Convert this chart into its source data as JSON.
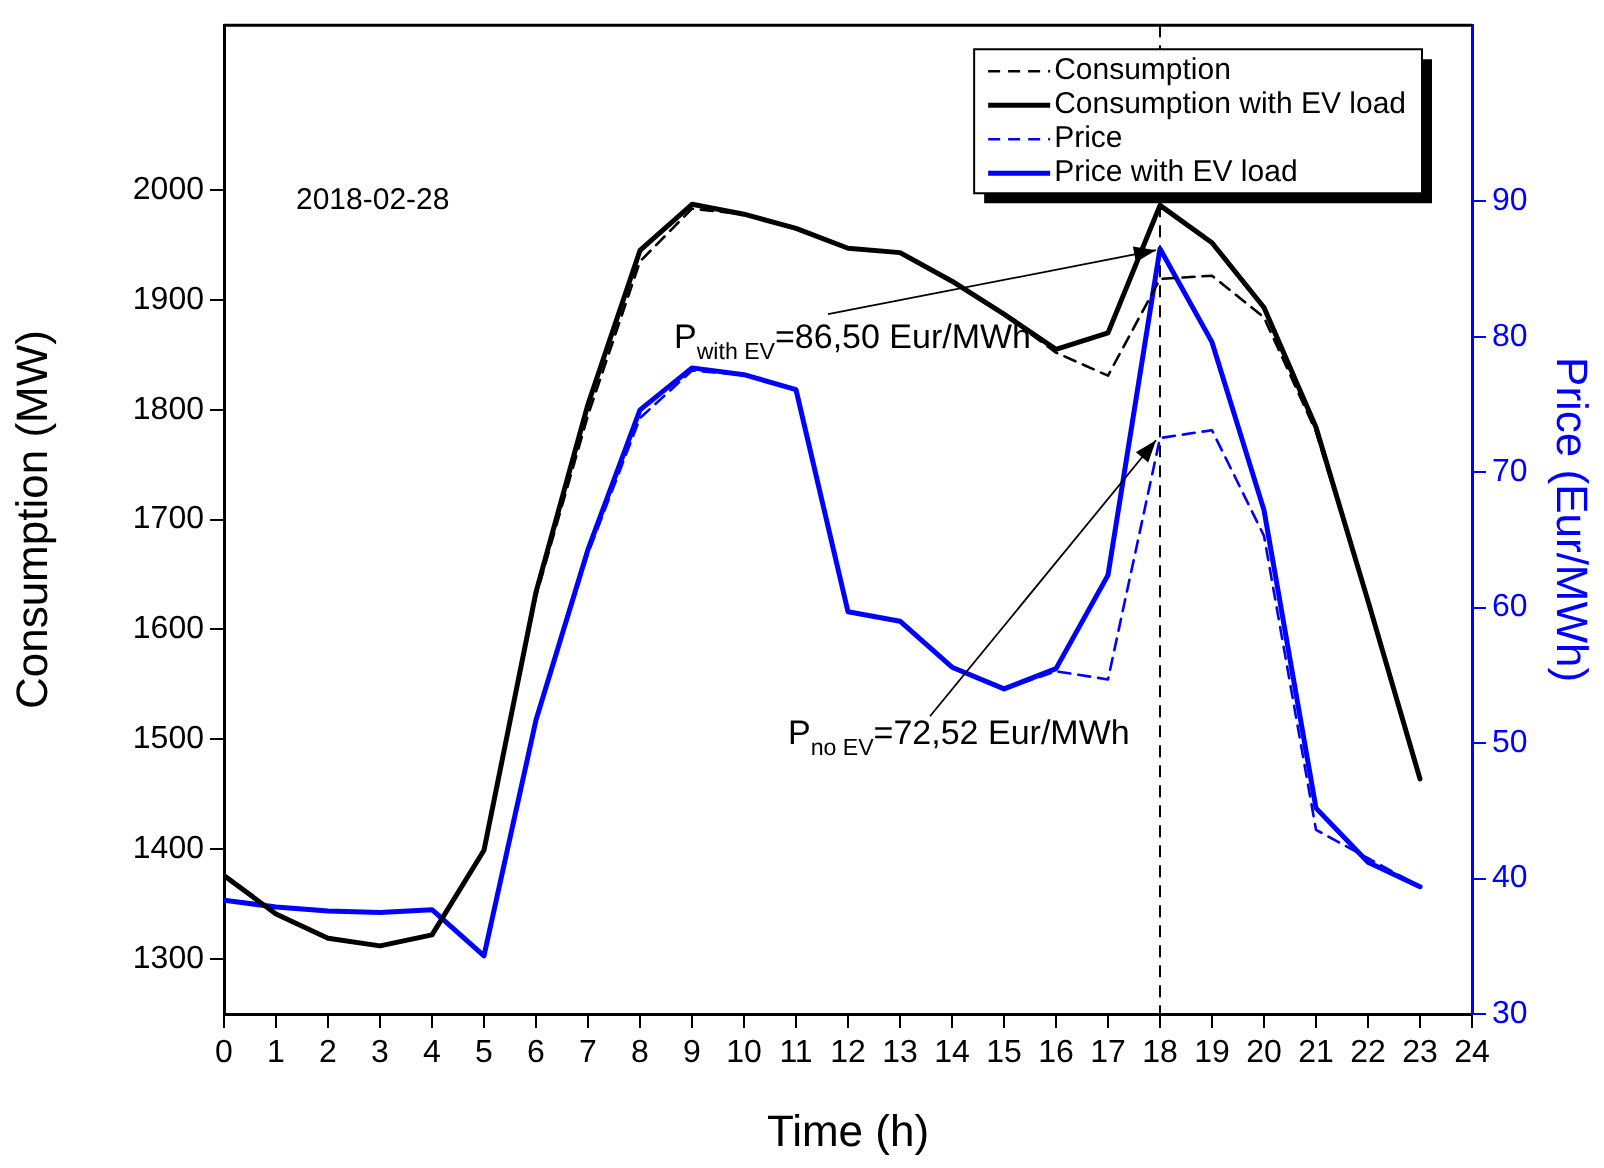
{
  "chart_data": {
    "type": "line",
    "xlabel": "Time (h)",
    "ylabel": "Consumption (MW)",
    "y2label": "Price (Eur/MWh)",
    "x": [
      0,
      1,
      2,
      3,
      4,
      5,
      6,
      7,
      8,
      9,
      10,
      11,
      12,
      13,
      14,
      15,
      16,
      17,
      18,
      19,
      20,
      21,
      22,
      23
    ],
    "series": [
      {
        "name": "Consumption",
        "color": "#000000",
        "line_style": "dashed",
        "values": [
          1376,
          1341,
          1319,
          1312,
          1322,
          1399,
          1630,
          1795,
          1935,
          1983,
          1978,
          1965,
          1947,
          1943,
          1917,
          1887,
          1852,
          1831,
          1919,
          1922,
          1884,
          1780,
          1626,
          1464
        ]
      },
      {
        "name": "Consumption with EV load",
        "color": "#000000",
        "line_style": "solid",
        "values": [
          1376,
          1341,
          1319,
          1312,
          1322,
          1399,
          1634,
          1805,
          1945,
          1987,
          1978,
          1965,
          1947,
          1943,
          1917,
          1887,
          1855,
          1870,
          1986,
          1952,
          1893,
          1784,
          1626,
          1464
        ]
      },
      {
        "name": "Price",
        "color": "#0000ff",
        "line_style": "dashed",
        "axis": "y2",
        "values": [
          38.4,
          37.9,
          37.6,
          37.5,
          37.7,
          34.3,
          51.7,
          64.0,
          74.0,
          77.5,
          77.2,
          76.1,
          59.7,
          59.0,
          55.6,
          54.0,
          55.3,
          54.7,
          72.52,
          73.1,
          65.3,
          43.6,
          41.5,
          39.4
        ]
      },
      {
        "name": "Price with EV load",
        "color": "#0000ff",
        "line_style": "solid",
        "axis": "y2",
        "values": [
          38.4,
          37.9,
          37.6,
          37.5,
          37.7,
          34.3,
          51.7,
          64.3,
          74.6,
          77.7,
          77.2,
          76.1,
          59.7,
          59.0,
          55.6,
          54.0,
          55.5,
          62.4,
          86.5,
          79.6,
          67.2,
          45.2,
          41.2,
          39.4
        ]
      }
    ],
    "xlim": [
      0,
      24
    ],
    "xticks": [
      0,
      1,
      2,
      3,
      4,
      5,
      6,
      7,
      8,
      9,
      10,
      11,
      12,
      13,
      14,
      15,
      16,
      17,
      18,
      19,
      20,
      21,
      22,
      23,
      24
    ],
    "ylim": [
      1250,
      2150
    ],
    "yticks": [
      1300,
      1400,
      1500,
      1600,
      1700,
      1800,
      1900,
      2000
    ],
    "y2lim": [
      30,
      103
    ],
    "y2ticks": [
      30,
      40,
      50,
      60,
      70,
      80,
      90
    ],
    "ref_lines": [
      {
        "axis": "x",
        "value": 18,
        "color": "#000000",
        "line_style": "dashed"
      }
    ],
    "annotations": [
      "2018-02-28",
      {
        "text": "P$_{with EV}$=86,50 Eur/MWh",
        "x": 18,
        "y": 1947
      },
      {
        "text": "P$_{no EV}$=72,52 Eur/MWh",
        "x": 18,
        "y": 1774
      }
    ],
    "grid": false,
    "legend": "top right",
    "marker": "none"
  }
}
